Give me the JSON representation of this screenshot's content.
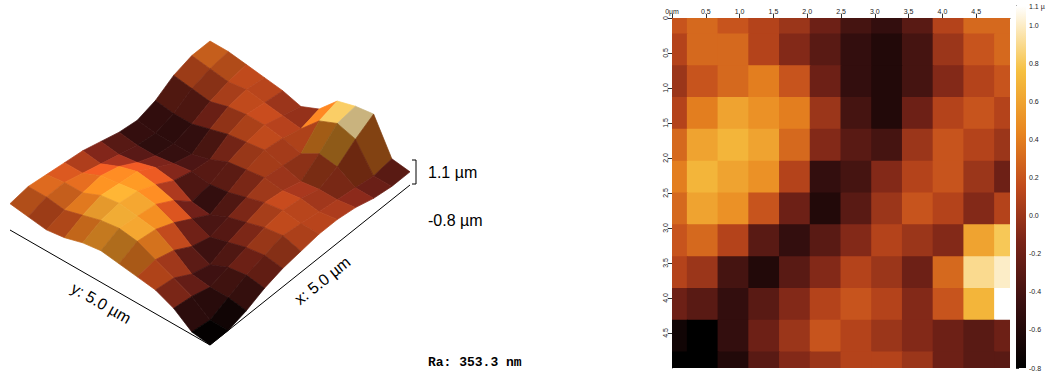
{
  "chart_data": [
    {
      "type": "surface3d",
      "xlim": [
        0,
        5
      ],
      "ylim": [
        0,
        5
      ],
      "zlim": [
        -0.8,
        1.1
      ],
      "x_label": "x: 5.0 µm",
      "y_label": "y: 5.0 µm",
      "z_ticks": [
        {
          "value": 1.1,
          "label": "1.1 µm"
        },
        {
          "value": -0.8,
          "label": "-0.8 µm"
        }
      ],
      "annotation": "Ra: 353.3 nm",
      "z": [
        [
          0.2,
          0.3,
          0.2,
          0.1,
          0.0,
          -0.2,
          -0.4,
          -0.5,
          -0.3,
          0.1,
          0.3,
          0.3
        ],
        [
          0.1,
          0.3,
          0.3,
          0.1,
          -0.1,
          -0.3,
          -0.5,
          -0.6,
          -0.4,
          0.0,
          0.2,
          0.3
        ],
        [
          0.0,
          0.2,
          0.3,
          0.4,
          0.2,
          -0.2,
          -0.5,
          -0.6,
          -0.4,
          -0.1,
          0.1,
          0.2
        ],
        [
          0.1,
          0.4,
          0.6,
          0.5,
          0.4,
          0.0,
          -0.4,
          -0.6,
          -0.2,
          0.1,
          0.2,
          0.1
        ],
        [
          0.3,
          0.6,
          0.7,
          0.6,
          0.3,
          -0.1,
          -0.3,
          -0.4,
          0.0,
          0.2,
          0.1,
          0.0
        ],
        [
          0.4,
          0.7,
          0.6,
          0.5,
          0.1,
          -0.5,
          -0.4,
          -0.1,
          0.1,
          0.2,
          0.0,
          -0.2
        ],
        [
          0.3,
          0.6,
          0.5,
          0.2,
          -0.2,
          -0.6,
          -0.3,
          0.0,
          0.2,
          0.1,
          -0.1,
          0.1
        ],
        [
          0.2,
          0.3,
          0.1,
          -0.3,
          -0.5,
          -0.3,
          -0.1,
          0.1,
          0.0,
          -0.1,
          0.6,
          0.8
        ],
        [
          0.1,
          0.0,
          -0.4,
          -0.6,
          -0.3,
          -0.1,
          0.1,
          0.0,
          -0.2,
          0.3,
          0.9,
          1.0
        ],
        [
          -0.2,
          -0.3,
          -0.5,
          -0.3,
          -0.1,
          0.1,
          0.2,
          0.1,
          -0.1,
          0.2,
          0.7,
          1.1
        ],
        [
          -0.7,
          -0.8,
          -0.5,
          -0.2,
          0.0,
          0.2,
          0.1,
          0.0,
          -0.1,
          -0.2,
          -0.3,
          -0.2
        ],
        [
          -0.8,
          -0.8,
          -0.6,
          -0.3,
          -0.1,
          0.0,
          0.1,
          0.1,
          0.0,
          -0.2,
          -0.3,
          -0.3
        ]
      ]
    },
    {
      "type": "heatmap",
      "xlim": [
        0,
        5
      ],
      "ylim": [
        0,
        5
      ],
      "xticks": [
        {
          "value": 0,
          "label": "0µm"
        },
        0.5,
        {
          "value": 1,
          "label": "1.0"
        },
        1.5,
        {
          "value": 2,
          "label": "2.0"
        },
        2.5,
        {
          "value": 3,
          "label": "3.0"
        },
        3.5,
        {
          "value": 4,
          "label": "4.0"
        },
        4.5
      ],
      "yticks": [
        0,
        0.5,
        {
          "value": 1,
          "label": "1.0"
        },
        1.5,
        {
          "value": 2,
          "label": "2.0"
        },
        2.5,
        {
          "value": 3,
          "label": "3.0"
        },
        3.5,
        {
          "value": 4,
          "label": "4.0"
        },
        4.5
      ],
      "colorbar_lim": [
        -0.8,
        1.1
      ],
      "colorbar_ticks": [
        {
          "value": 1.1,
          "label": "1.1 µ"
        },
        {
          "value": 1.0,
          "label": "1.0"
        },
        0.8,
        0.6,
        0.4,
        0.2,
        {
          "value": 0.0,
          "label": "0.0"
        },
        -0.2,
        -0.4,
        -0.6,
        -0.8
      ],
      "z": [
        [
          0.2,
          0.3,
          0.2,
          0.1,
          0.0,
          -0.2,
          -0.4,
          -0.5,
          -0.3,
          0.1,
          0.3,
          0.3
        ],
        [
          0.1,
          0.3,
          0.3,
          0.1,
          -0.1,
          -0.3,
          -0.5,
          -0.6,
          -0.4,
          0.0,
          0.2,
          0.3
        ],
        [
          0.0,
          0.2,
          0.3,
          0.4,
          0.2,
          -0.2,
          -0.5,
          -0.6,
          -0.4,
          -0.1,
          0.1,
          0.2
        ],
        [
          0.1,
          0.4,
          0.6,
          0.5,
          0.4,
          0.0,
          -0.4,
          -0.6,
          -0.2,
          0.1,
          0.2,
          0.1
        ],
        [
          0.3,
          0.6,
          0.7,
          0.6,
          0.3,
          -0.1,
          -0.3,
          -0.4,
          0.0,
          0.2,
          0.1,
          0.0
        ],
        [
          0.4,
          0.7,
          0.6,
          0.5,
          0.1,
          -0.5,
          -0.4,
          -0.1,
          0.1,
          0.2,
          0.0,
          -0.2
        ],
        [
          0.3,
          0.6,
          0.5,
          0.2,
          -0.2,
          -0.6,
          -0.3,
          0.0,
          0.2,
          0.1,
          -0.1,
          0.1
        ],
        [
          0.2,
          0.3,
          0.1,
          -0.3,
          -0.5,
          -0.3,
          -0.1,
          0.1,
          0.0,
          -0.1,
          0.6,
          0.8
        ],
        [
          0.1,
          0.0,
          -0.4,
          -0.6,
          -0.3,
          -0.1,
          0.1,
          0.0,
          -0.2,
          0.3,
          0.9,
          1.0
        ],
        [
          -0.2,
          -0.3,
          -0.5,
          -0.3,
          -0.1,
          0.1,
          0.2,
          0.1,
          -0.1,
          0.2,
          0.7,
          1.1
        ],
        [
          -0.7,
          -0.8,
          -0.5,
          -0.2,
          0.0,
          0.2,
          0.1,
          0.0,
          -0.1,
          -0.2,
          -0.3,
          -0.2
        ],
        [
          -0.8,
          -0.8,
          -0.6,
          -0.3,
          -0.1,
          0.0,
          0.1,
          0.1,
          0.0,
          -0.2,
          -0.3,
          -0.3
        ]
      ]
    }
  ]
}
